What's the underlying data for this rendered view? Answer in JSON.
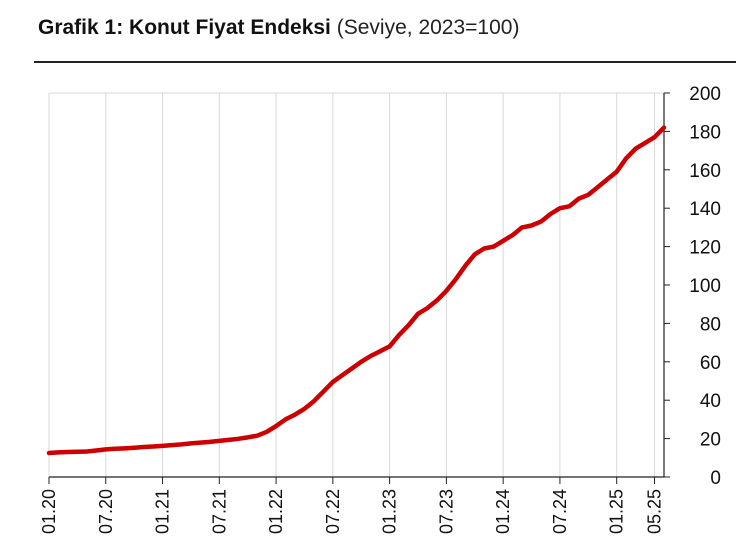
{
  "chart_data": {
    "type": "line",
    "title": "Grafik 1: Konut Fiyat Endeksi",
    "subtitle": "(Seviye, 2023=100)",
    "xlabel": "",
    "ylabel": "",
    "ylim": [
      0,
      200
    ],
    "yticks": [
      0,
      20,
      40,
      60,
      80,
      100,
      120,
      140,
      160,
      180,
      200
    ],
    "xticks": [
      "01.20",
      "07.20",
      "01.21",
      "07.21",
      "01.22",
      "07.22",
      "01.23",
      "07.23",
      "01.24",
      "07.24",
      "01.25",
      "05.25"
    ],
    "grid": "vertical",
    "legend": "none",
    "line_color": "#cc0000",
    "series": [
      {
        "start": "2020-01",
        "values": [
          12.5,
          12.8,
          13.0,
          13.1,
          13.3,
          13.8,
          14.4,
          14.7,
          14.9,
          15.2,
          15.6,
          15.9,
          16.2,
          16.6,
          17.0,
          17.5,
          17.9,
          18.3,
          18.8,
          19.3,
          19.9,
          20.6,
          21.5,
          23.5,
          26.5,
          30.0,
          32.5,
          35.5,
          39.5,
          44.5,
          49.5,
          53.0,
          56.5,
          60.0,
          63.0,
          65.5,
          68.0,
          74.0,
          79.0,
          85.0,
          88.0,
          92.0,
          97.0,
          103.0,
          110.0,
          116.0,
          119.0,
          120.0,
          123.0,
          126.0,
          130.0,
          131.0,
          133.0,
          137.0,
          140.0,
          141.0,
          145.0,
          147.0,
          151.0,
          155.0,
          159.0,
          166.0,
          171.0,
          174.0,
          177.0,
          182.0
        ]
      }
    ]
  }
}
